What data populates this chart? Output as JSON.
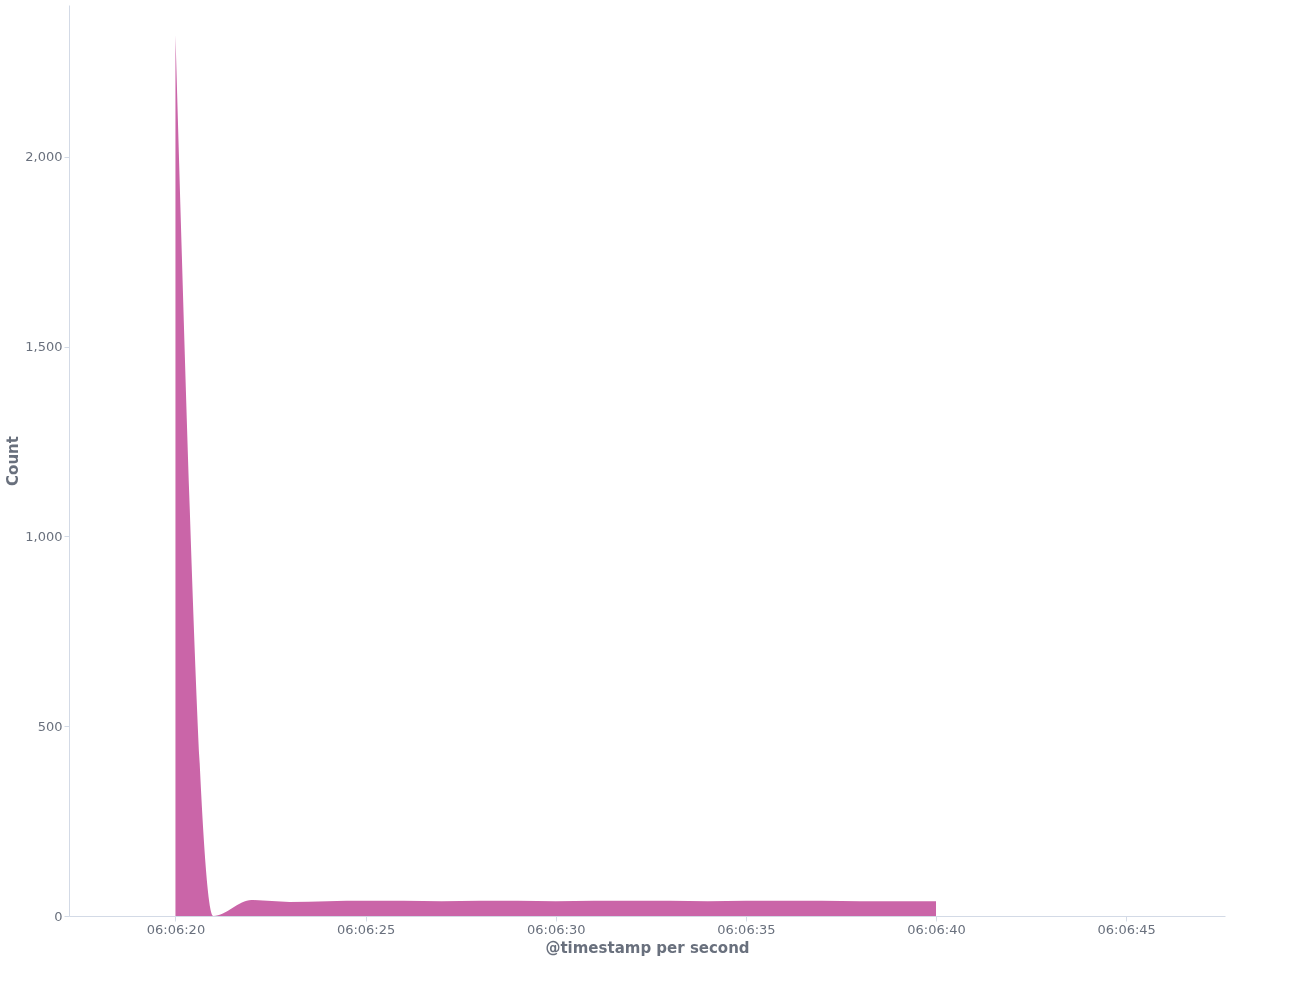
{
  "chart_data": {
    "type": "area",
    "xlabel": "@timestamp per second",
    "ylabel": "Count",
    "x": [
      6.1055556,
      6.1058333,
      6.1061111,
      6.1063889,
      6.1066667,
      6.1069444,
      6.1072222,
      6.1075,
      6.1077778,
      6.1080556,
      6.1083333,
      6.1086111,
      6.1088889,
      6.1091667,
      6.1094444,
      6.1097222,
      6.11,
      6.1102778,
      6.1105556,
      6.1108333,
      6.1111111
    ],
    "series": [
      {
        "color": "#ca65a8",
        "values": [
          2320,
          0,
          42,
          37,
          39,
          40,
          40,
          39,
          40,
          40,
          39,
          40,
          40,
          40,
          39,
          40,
          40,
          40,
          39,
          39,
          39
        ]
      }
    ],
    "xlim": [
      6.104778,
      6.113222
    ],
    "xticks": [
      {
        "value": 6.1055556,
        "label": "06:06:20"
      },
      {
        "value": 6.1069444,
        "label": "06:06:25"
      },
      {
        "value": 6.1083333,
        "label": "06:06:30"
      },
      {
        "value": 6.1097222,
        "label": "06:06:35"
      },
      {
        "value": 6.1111111,
        "label": "06:06:40"
      },
      {
        "value": 6.1125,
        "label": "06:06:45"
      }
    ],
    "ylim": [
      0,
      2400
    ],
    "yticks": [
      0,
      500,
      {
        "value": 1000,
        "label": "1,000"
      },
      {
        "value": 1500,
        "label": "1,500"
      },
      {
        "value": 2000,
        "label": "2,000"
      }
    ],
    "grid": false
  }
}
